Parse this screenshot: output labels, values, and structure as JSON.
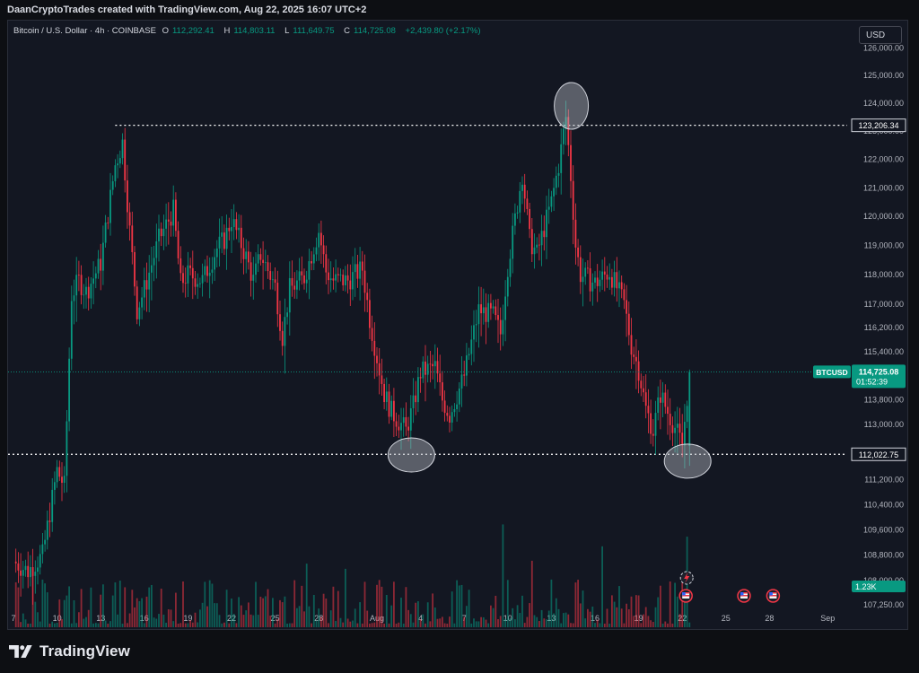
{
  "header": {
    "title": "DaanCryptoTrades created with TradingView.com, Aug 22, 2025 16:07 UTC+2"
  },
  "legend": {
    "symbol": "Bitcoin / U.S. Dollar · 4h · COINBASE",
    "open_label": "O",
    "open": "112,292.41",
    "high_label": "H",
    "high": "114,803.11",
    "low_label": "L",
    "low": "111,649.75",
    "close_label": "C",
    "close": "114,725.08",
    "change": "+2,439.80 (+2.17%)"
  },
  "currency_button": "USD",
  "footer": {
    "brand": "TradingView"
  },
  "colors": {
    "up": "#089981",
    "down": "#f23645",
    "background": "#131722",
    "text": "#b2b5be",
    "level_line": "#ffffff",
    "circle": "#b2b5be"
  },
  "chart_data": {
    "type": "candlestick",
    "symbol_tag": "BTCUSD",
    "last_price": "114,725.08",
    "countdown": "01:52:39",
    "volume_tag": "1.23K",
    "y_scale": "log",
    "ylim": [
      107000,
      126500
    ],
    "y_ticks": [
      "126,000.00",
      "125,000.00",
      "124,000.00",
      "123,000.00",
      "122,000.00",
      "121,000.00",
      "120,000.00",
      "119,000.00",
      "118,000.00",
      "117,000.00",
      "116,200.00",
      "115,400.00",
      "113,800.00",
      "113,000.00",
      "111,200.00",
      "110,400.00",
      "109,600.00",
      "108,800.00",
      "108,000.00",
      "107,250.00"
    ],
    "x_ticks": [
      "7",
      "10",
      "13",
      "16",
      "19",
      "22",
      "25",
      "28",
      "Aug",
      "4",
      "7",
      "10",
      "13",
      "16",
      "19",
      "22",
      "25",
      "28",
      "Sep"
    ],
    "horizontal_levels": [
      {
        "value": 123206.34,
        "label": "123,206.34"
      },
      {
        "value": 112022.75,
        "label": "112,022.75"
      }
    ],
    "highlight_circles": [
      {
        "date": "Aug 3",
        "price": 112000
      },
      {
        "date": "Aug 14",
        "price": 123900
      },
      {
        "date": "Aug 22",
        "price": 111800
      }
    ],
    "event_icons": [
      {
        "date": "Aug 22",
        "icon": "us-flag-icon"
      },
      {
        "date": "Aug 26",
        "icon": "us-flag-icon"
      },
      {
        "date": "Aug 28",
        "icon": "us-flag-icon"
      }
    ],
    "close_path": [
      [
        "Jul 7",
        108600
      ],
      [
        "Jul 8",
        108300
      ],
      [
        "Jul 9",
        108800
      ],
      [
        "Jul 10",
        111500
      ],
      [
        "Jul 10",
        111000
      ],
      [
        "Jul 11",
        117300
      ],
      [
        "Jul 11",
        117800
      ],
      [
        "Jul 12",
        117400
      ],
      [
        "Jul 13",
        118400
      ],
      [
        "Jul 14",
        121800
      ],
      [
        "Jul 14",
        122600
      ],
      [
        "Jul 15",
        119500
      ],
      [
        "Jul 15",
        116800
      ],
      [
        "Jul 16",
        117500
      ],
      [
        "Jul 17",
        119200
      ],
      [
        "Jul 18",
        120200
      ],
      [
        "Jul 18",
        117700
      ],
      [
        "Jul 19",
        118000
      ],
      [
        "Jul 20",
        117800
      ],
      [
        "Jul 21",
        118900
      ],
      [
        "Jul 21",
        119200
      ],
      [
        "Jul 22",
        119900
      ],
      [
        "Jul 23",
        118600
      ],
      [
        "Jul 23",
        117800
      ],
      [
        "Jul 24",
        118700
      ],
      [
        "Jul 25",
        117600
      ],
      [
        "Jul 25",
        115900
      ],
      [
        "Jul 26",
        117500
      ],
      [
        "Jul 27",
        117900
      ],
      [
        "Jul 28",
        119500
      ],
      [
        "Jul 28",
        118100
      ],
      [
        "Jul 29",
        117800
      ],
      [
        "Jul 30",
        117800
      ],
      [
        "Jul 31",
        118200
      ],
      [
        "Jul 31",
        116500
      ],
      [
        "Aug 1",
        115200
      ],
      [
        "Aug 1",
        114000
      ],
      [
        "Aug 2",
        113400
      ],
      [
        "Aug 2",
        113100
      ],
      [
        "Aug 3",
        112800
      ],
      [
        "Aug 3",
        113600
      ],
      [
        "Aug 4",
        114700
      ],
      [
        "Aug 5",
        114900
      ],
      [
        "Aug 5",
        113800
      ],
      [
        "Aug 6",
        113300
      ],
      [
        "Aug 7",
        114600
      ],
      [
        "Aug 8",
        116800
      ],
      [
        "Aug 9",
        116600
      ],
      [
        "Aug 9",
        116000
      ],
      [
        "Aug 10",
        118300
      ],
      [
        "Aug 11",
        121500
      ],
      [
        "Aug 11",
        119200
      ],
      [
        "Aug 12",
        118700
      ],
      [
        "Aug 13",
        120500
      ],
      [
        "Aug 13",
        121800
      ],
      [
        "Aug 14",
        123500
      ],
      [
        "Aug 14",
        121400
      ],
      [
        "Aug 14",
        119000
      ],
      [
        "Aug 15",
        118000
      ],
      [
        "Aug 16",
        117700
      ],
      [
        "Aug 17",
        118100
      ],
      [
        "Aug 18",
        117000
      ],
      [
        "Aug 18",
        115600
      ],
      [
        "Aug 19",
        114800
      ],
      [
        "Aug 19",
        113500
      ],
      [
        "Aug 20",
        112800
      ],
      [
        "Aug 20",
        114000
      ],
      [
        "Aug 21",
        113400
      ],
      [
        "Aug 21",
        112900
      ],
      [
        "Aug 22",
        112300
      ],
      [
        "Aug 22",
        114725
      ]
    ]
  }
}
